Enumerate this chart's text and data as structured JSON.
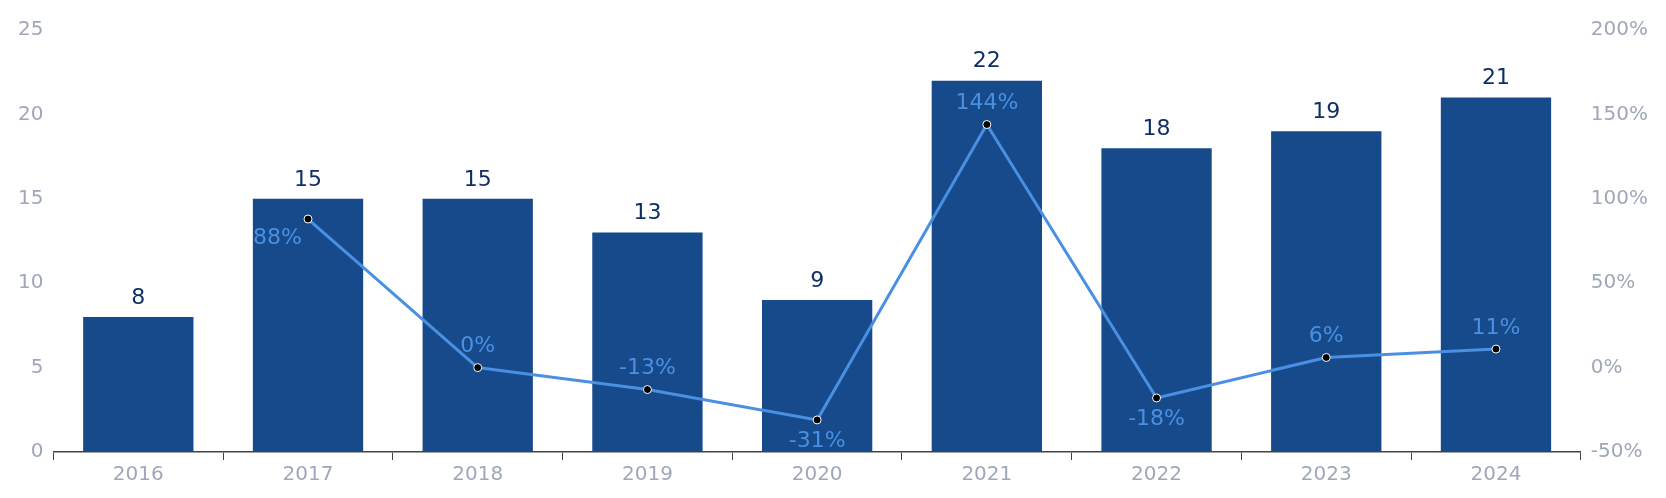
{
  "chart_data": {
    "type": "bar",
    "categories": [
      "2016",
      "2017",
      "2018",
      "2019",
      "2020",
      "2021",
      "2022",
      "2023",
      "2024"
    ],
    "series": [
      {
        "color": "#174a8b",
        "values": [
          8,
          15,
          15,
          13,
          9,
          22,
          18,
          19,
          21
        ],
        "value_labels": [
          "8",
          "15",
          "15",
          "13",
          "9",
          "22",
          "18",
          "19",
          "21"
        ]
      },
      {
        "type": "line",
        "axis": "y2",
        "color": "#4a90e2",
        "values": [
          null,
          88,
          0,
          -13,
          -31,
          144,
          -18,
          6,
          11
        ],
        "value_labels": [
          null,
          "88%",
          "0%",
          "-13%",
          "-31%",
          "144%",
          "-18%",
          "6%",
          "11%"
        ]
      }
    ],
    "ylim": [
      0,
      25
    ],
    "yticks": [
      0,
      5,
      10,
      15,
      20,
      25
    ],
    "y2lim": [
      -50,
      200
    ],
    "y2ticks": [
      {
        "value": -50,
        "label": "-50%"
      },
      {
        "value": 0,
        "label": "0%"
      },
      {
        "value": 50,
        "label": "50%"
      },
      {
        "value": 100,
        "label": "100%"
      },
      {
        "value": 150,
        "label": "150%"
      },
      {
        "value": 200,
        "label": "200%"
      }
    ],
    "marker": "circle",
    "line_style": "solid",
    "grid": false,
    "legend": false
  }
}
